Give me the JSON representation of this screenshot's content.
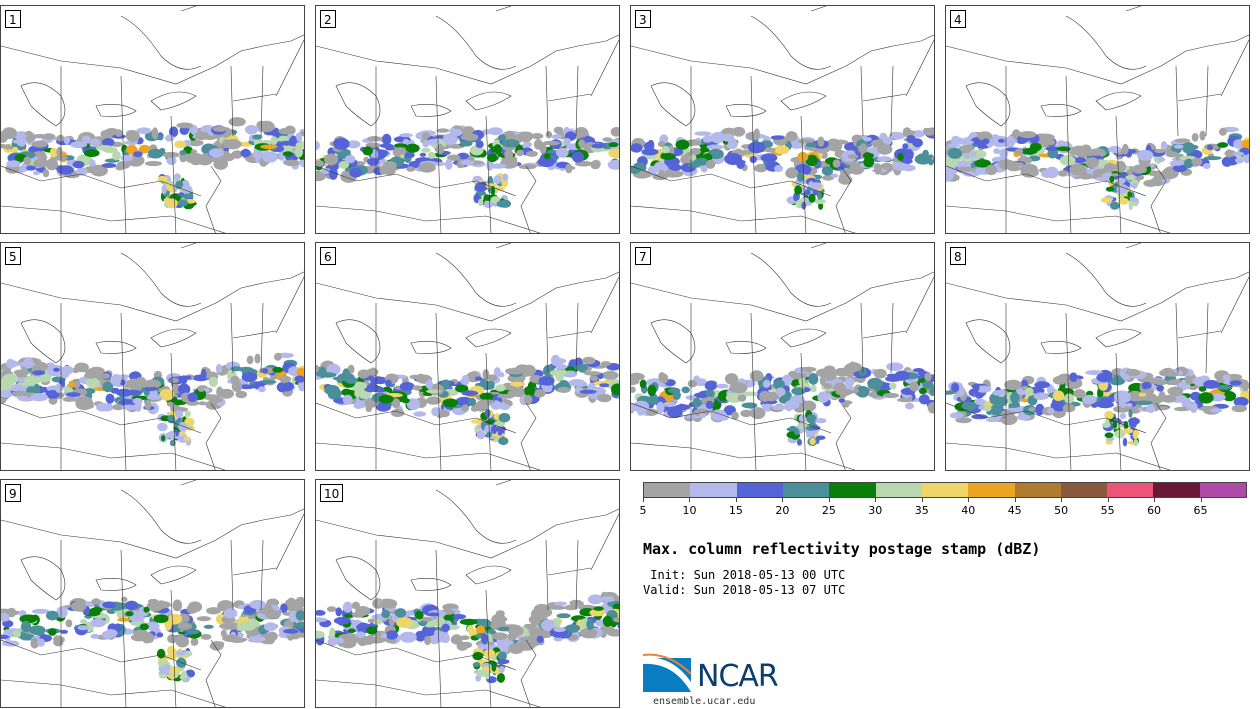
{
  "figure": {
    "title": "Max. column reflectivity postage stamp (dBZ)",
    "init": " Init: Sun 2018-05-13 00 UTC",
    "valid": "Valid: Sun 2018-05-13 07 UTC",
    "logo_text": "NCAR",
    "url": "ensemble.ucar.edu"
  },
  "panels": [
    {
      "label": "1"
    },
    {
      "label": "2"
    },
    {
      "label": "3"
    },
    {
      "label": "4"
    },
    {
      "label": "5"
    },
    {
      "label": "6"
    },
    {
      "label": "7"
    },
    {
      "label": "8"
    },
    {
      "label": "9"
    },
    {
      "label": "10"
    }
  ],
  "colorbar": {
    "unit": "dBZ",
    "ticks": [
      "5",
      "10",
      "15",
      "20",
      "25",
      "30",
      "35",
      "40",
      "45",
      "50",
      "55",
      "60",
      "65"
    ],
    "colors": [
      "#a4a4a4",
      "#b3b9ea",
      "#5563d8",
      "#4b8f9a",
      "#087f08",
      "#b8d8b0",
      "#eed768",
      "#eba520",
      "#b07a30",
      "#8a5a40",
      "#ee5478",
      "#6a1838",
      "#b04aa8"
    ]
  }
}
